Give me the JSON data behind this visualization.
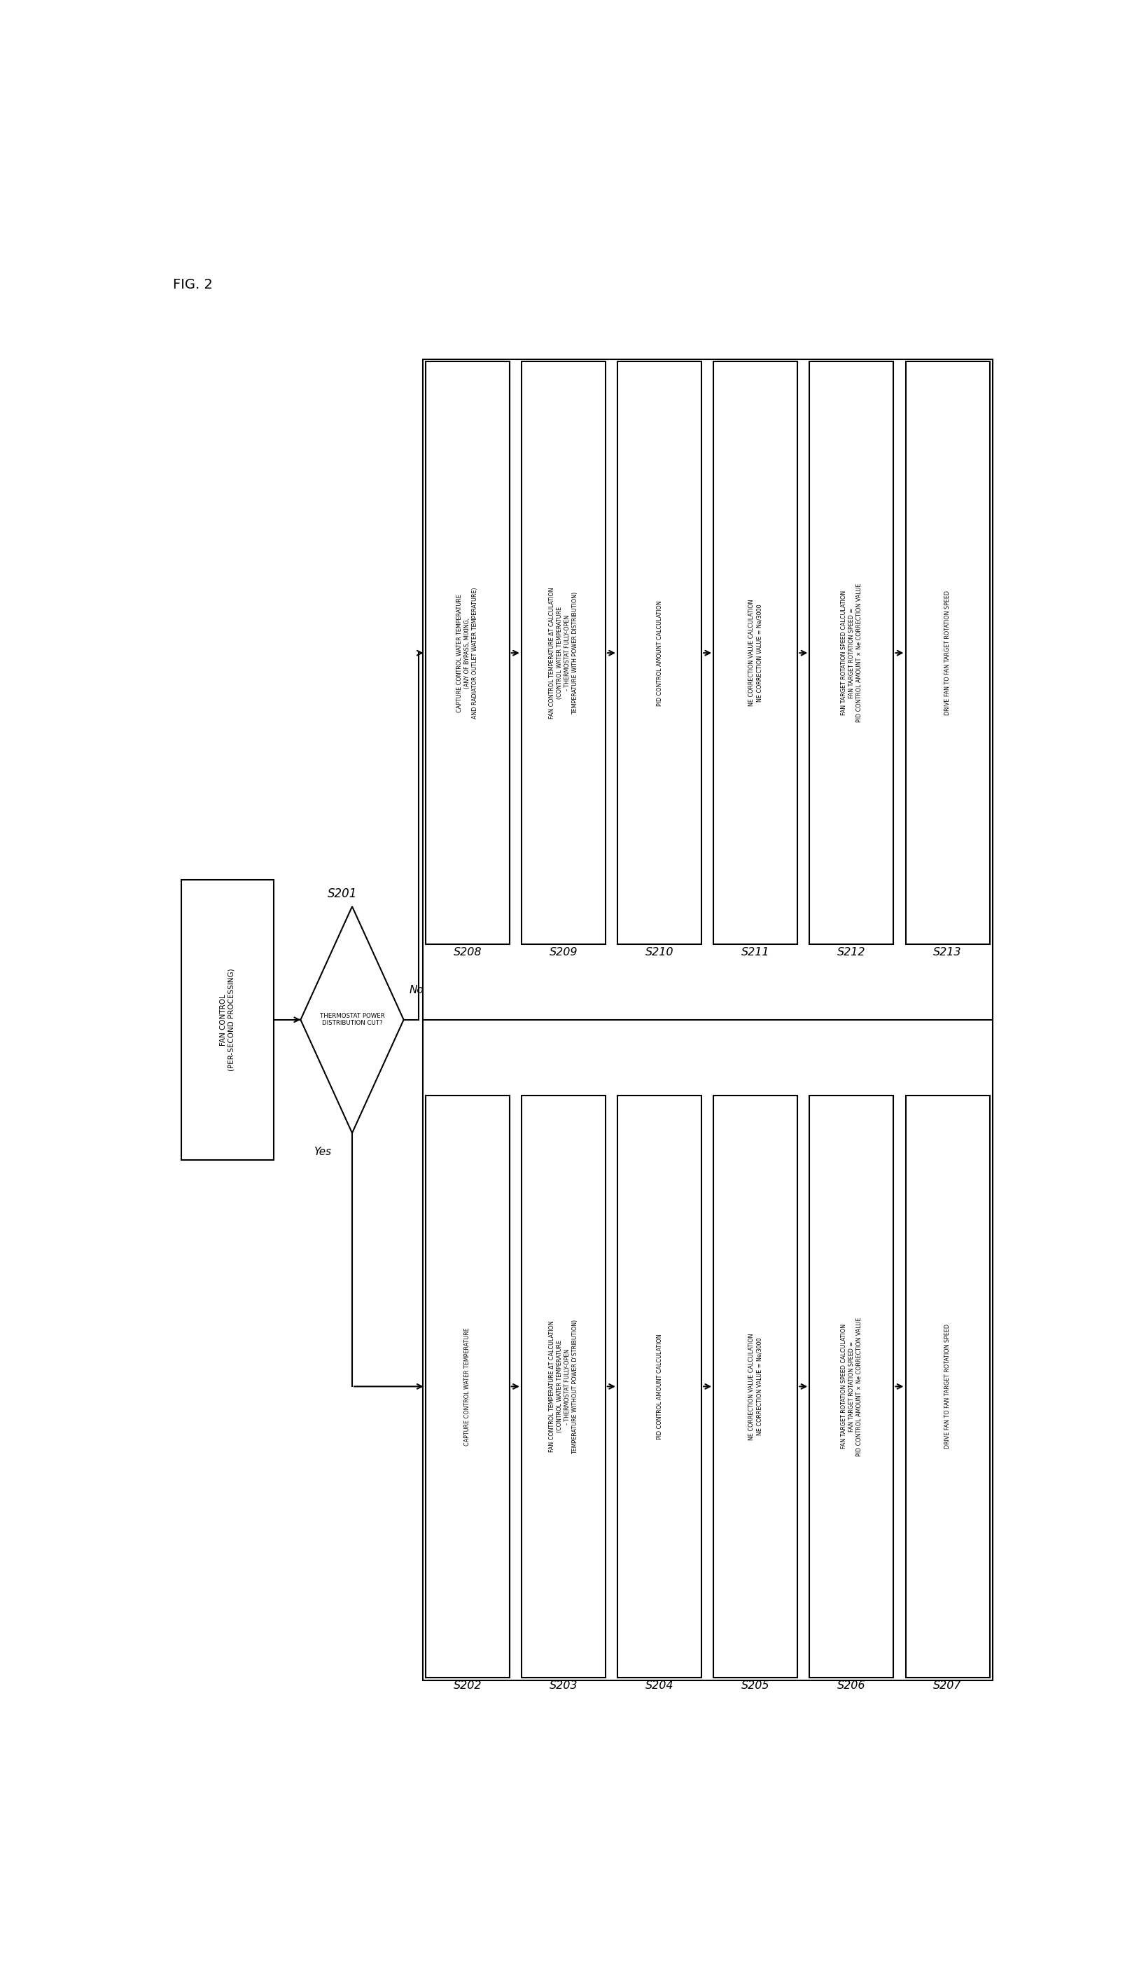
{
  "fig_label": "FIG. 2",
  "background_color": "#ffffff",
  "title_box": "FAN CONTROL\n(PER-SECOND PROCESSING)",
  "diamond_label": "THERMOSTAT POWER\nDISTRIBUTION CUT?",
  "diamond_step": "S201",
  "no_label": "No",
  "yes_label": "Yes",
  "top_row": {
    "steps": [
      "S208",
      "S209",
      "S210",
      "S211",
      "S212",
      "S213"
    ],
    "labels": [
      "CAPTURE CONTROL WATER TEMPERATURE\n(ANY OF BYPASS, MIXING,\nAND RADIATOR OUTLET WATER TEMPERATURE)",
      "FAN CONTROL TEMPERATURE ΔT CALCULATION\n(CONTROL WATER TEMPERATURE\n- THERMOSTAT FULLY-OPEN\nTEMPERATURE WITH POWER DISTRIBUTION)",
      "PID CONTROL AMOUNT CALCULATION",
      "NE CORRECTION VALUE CALCULATION\nNE CORRECTION VALUE = Ne/3000",
      "FAN TARGET ROTATION SPEED CALCULATION\nFAN TARGET ROTATION SPEED =\nPID CONTROL AMOUNT × Ne CORRECTION VALUE",
      "DRIVE FAN TO FAN TARGET ROTATION SPEED"
    ]
  },
  "bottom_row": {
    "steps": [
      "S202",
      "S203",
      "S204",
      "S205",
      "S206",
      "S207"
    ],
    "labels": [
      "CAPTURE CONTROL WATER TEMPERATURE",
      "FAN CONTROL TEMPERATURE ΔT CALCULATION\n(CONTROL WATER TEMPERATURE\n- THERMOSTAT FULLY-OPEN\nTEMPERATURE WITHOUT POWER D'STRIBUTION)",
      "PID CONTROL AMOUNT CALCULATION",
      "NE CORRECTION VALUE CALCULATION\nNE CORRECTION VALUE = Ne/3000",
      "FAN TARGET ROTATION SPEED CALCULATION\nFAN TARGET ROTATION SPEED =\nPID CONTROL AMOUNT × Ne CORRECTION VALUE",
      "DRIVE FAN TO FAN TARGET ROTATION SPEED"
    ]
  }
}
